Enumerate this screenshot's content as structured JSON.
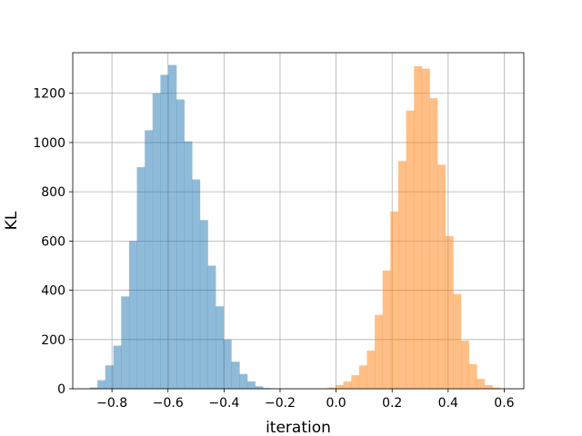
{
  "chart_data": {
    "type": "histogram",
    "title": "",
    "xlabel": "iteration",
    "ylabel": "KL",
    "xlim": [
      -0.94,
      0.67
    ],
    "ylim": [
      0,
      1365
    ],
    "grid": true,
    "legend": "none",
    "x_ticks": [
      -0.8,
      -0.6,
      -0.4,
      -0.2,
      0.0,
      0.2,
      0.4,
      0.6
    ],
    "x_tick_labels": [
      "−0.8",
      "−0.6",
      "−0.4",
      "−0.2",
      "0.0",
      "0.2",
      "0.4",
      "0.6"
    ],
    "y_ticks": [
      0,
      200,
      400,
      600,
      800,
      1000,
      1200
    ],
    "y_tick_labels": [
      "0",
      "200",
      "400",
      "600",
      "800",
      "1000",
      "1200"
    ],
    "series": [
      {
        "color": "#1f77b4",
        "alpha": 0.5,
        "bin_edges": [
          -0.88,
          -0.852,
          -0.824,
          -0.795,
          -0.767,
          -0.739,
          -0.711,
          -0.683,
          -0.655,
          -0.627,
          -0.599,
          -0.57,
          -0.542,
          -0.514,
          -0.486,
          -0.458,
          -0.43,
          -0.402,
          -0.374,
          -0.345,
          -0.317,
          -0.289,
          -0.261,
          -0.233,
          -0.205,
          -0.177
        ],
        "counts": [
          5,
          35,
          95,
          175,
          375,
          600,
          900,
          1050,
          1200,
          1275,
          1315,
          1175,
          1005,
          850,
          685,
          500,
          335,
          200,
          110,
          60,
          30,
          10,
          3,
          1,
          0
        ]
      },
      {
        "color": "#ff7f0e",
        "alpha": 0.5,
        "bin_edges": [
          -0.03,
          -0.002,
          0.026,
          0.054,
          0.082,
          0.11,
          0.138,
          0.166,
          0.194,
          0.222,
          0.25,
          0.278,
          0.306,
          0.334,
          0.362,
          0.39,
          0.418,
          0.446,
          0.474,
          0.502,
          0.53,
          0.558,
          0.586,
          0.614
        ],
        "counts": [
          5,
          15,
          30,
          55,
          95,
          155,
          300,
          480,
          720,
          925,
          1130,
          1310,
          1300,
          1180,
          910,
          620,
          385,
          195,
          100,
          40,
          15,
          5,
          1
        ]
      }
    ]
  }
}
